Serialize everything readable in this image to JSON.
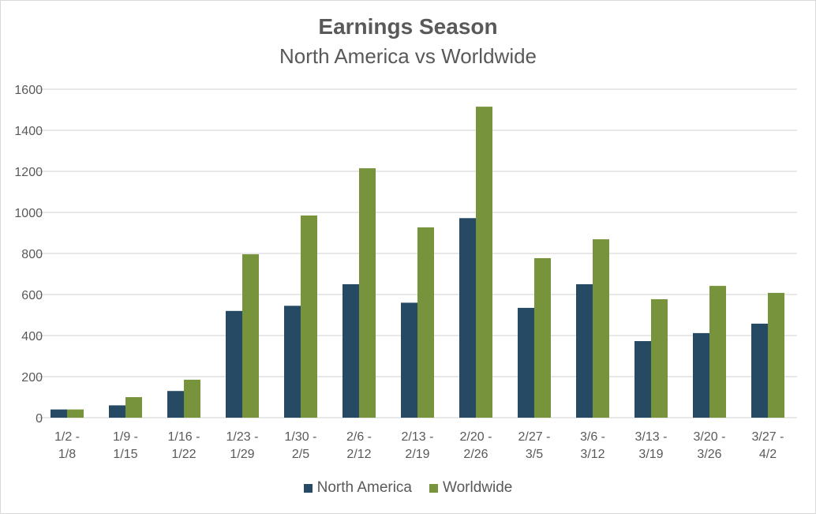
{
  "chart_data": {
    "type": "bar",
    "title": "Earnings Season",
    "subtitle": "North America vs Worldwide",
    "xlabel": "",
    "ylabel": "",
    "ylim": [
      0,
      1600
    ],
    "yticks": [
      0,
      200,
      400,
      600,
      800,
      1000,
      1200,
      1400,
      1600
    ],
    "grid": true,
    "legend_position": "bottom",
    "categories": [
      [
        "1/2 -",
        "1/8"
      ],
      [
        "1/9 -",
        "1/15"
      ],
      [
        "1/16 -",
        "1/22"
      ],
      [
        "1/23 -",
        "1/29"
      ],
      [
        "1/30 -",
        "2/5"
      ],
      [
        "2/6 -",
        "2/12"
      ],
      [
        "2/13 -",
        "2/19"
      ],
      [
        "2/20 -",
        "2/26"
      ],
      [
        "2/27 -",
        "3/5"
      ],
      [
        "3/6 -",
        "3/12"
      ],
      [
        "3/13 -",
        "3/19"
      ],
      [
        "3/20 -",
        "3/26"
      ],
      [
        "3/27 -",
        "4/2"
      ]
    ],
    "series": [
      {
        "name": "North America",
        "color": "#264A63",
        "values": [
          40,
          60,
          130,
          520,
          545,
          650,
          560,
          972,
          535,
          650,
          373,
          412,
          458
        ]
      },
      {
        "name": "Worldwide",
        "color": "#77933C",
        "values": [
          40,
          100,
          185,
          796,
          985,
          1215,
          927,
          1515,
          777,
          869,
          577,
          642,
          608
        ]
      }
    ]
  }
}
